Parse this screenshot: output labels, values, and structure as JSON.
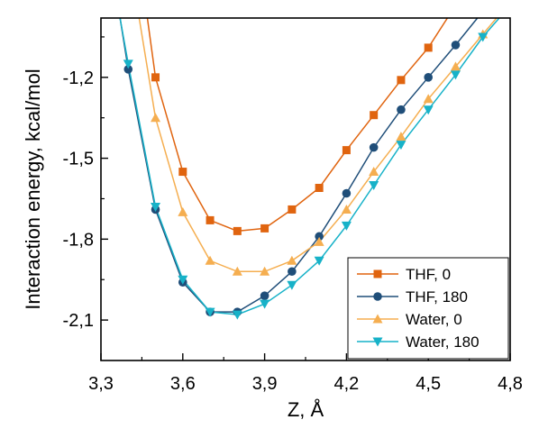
{
  "chart_data": {
    "type": "line",
    "xlabel": "Z, Å",
    "ylabel": "Interaction energy, kcal/mol",
    "xlim": [
      3.3,
      4.8
    ],
    "ylim": [
      -2.25,
      -0.98
    ],
    "xticks": [
      3.3,
      3.6,
      3.9,
      4.2,
      4.5,
      4.8
    ],
    "xtick_labels": [
      "3,3",
      "3,6",
      "3,9",
      "4,2",
      "4,5",
      "4,8"
    ],
    "yticks": [
      -1.2,
      -1.5,
      -1.8,
      -2.1
    ],
    "ytick_labels": [
      "-1,2",
      "-1,5",
      "-1,8",
      "-2,1"
    ],
    "grid": false,
    "legend_position": "bottom-right",
    "series": [
      {
        "name": "THF, 0",
        "color": "#e0640f",
        "marker": "square",
        "x": [
          3.5,
          3.6,
          3.7,
          3.8,
          3.9,
          4.0,
          4.1,
          4.2,
          4.3,
          4.4,
          4.5
        ],
        "y": [
          -1.2,
          -1.55,
          -1.73,
          -1.77,
          -1.76,
          -1.69,
          -1.61,
          -1.47,
          -1.34,
          -1.21,
          -1.09
        ],
        "curve": [
          [
            3.47,
            -0.98
          ],
          [
            3.5,
            -1.2
          ],
          [
            3.6,
            -1.55
          ],
          [
            3.7,
            -1.73
          ],
          [
            3.8,
            -1.77
          ],
          [
            3.9,
            -1.76
          ],
          [
            4.0,
            -1.69
          ],
          [
            4.1,
            -1.61
          ],
          [
            4.2,
            -1.47
          ],
          [
            4.3,
            -1.34
          ],
          [
            4.4,
            -1.21
          ],
          [
            4.5,
            -1.09
          ],
          [
            4.57,
            -0.98
          ]
        ]
      },
      {
        "name": "THF, 180",
        "color": "#1f4e79",
        "marker": "circle",
        "x": [
          3.4,
          3.5,
          3.6,
          3.7,
          3.8,
          3.9,
          4.0,
          4.1,
          4.2,
          4.3,
          4.4,
          4.5,
          4.6
        ],
        "y": [
          -1.17,
          -1.69,
          -1.96,
          -2.07,
          -2.07,
          -2.01,
          -1.92,
          -1.79,
          -1.63,
          -1.46,
          -1.32,
          -1.2,
          -1.08
        ],
        "curve": [
          [
            3.37,
            -0.98
          ],
          [
            3.4,
            -1.17
          ],
          [
            3.5,
            -1.69
          ],
          [
            3.6,
            -1.96
          ],
          [
            3.7,
            -2.07
          ],
          [
            3.8,
            -2.07
          ],
          [
            3.9,
            -2.01
          ],
          [
            4.0,
            -1.92
          ],
          [
            4.1,
            -1.79
          ],
          [
            4.2,
            -1.63
          ],
          [
            4.3,
            -1.46
          ],
          [
            4.4,
            -1.32
          ],
          [
            4.5,
            -1.2
          ],
          [
            4.6,
            -1.08
          ],
          [
            4.68,
            -0.98
          ]
        ]
      },
      {
        "name": "Water, 0",
        "color": "#f5ae50",
        "marker": "triangle-up",
        "x": [
          3.5,
          3.6,
          3.7,
          3.8,
          3.9,
          4.0,
          4.1,
          4.2,
          4.3,
          4.4,
          4.5,
          4.6,
          4.7
        ],
        "y": [
          -1.35,
          -1.7,
          -1.88,
          -1.92,
          -1.92,
          -1.88,
          -1.81,
          -1.69,
          -1.55,
          -1.42,
          -1.28,
          -1.16,
          -1.04
        ],
        "curve": [
          [
            3.44,
            -0.98
          ],
          [
            3.5,
            -1.35
          ],
          [
            3.6,
            -1.7
          ],
          [
            3.7,
            -1.88
          ],
          [
            3.8,
            -1.92
          ],
          [
            3.9,
            -1.92
          ],
          [
            4.0,
            -1.88
          ],
          [
            4.1,
            -1.81
          ],
          [
            4.2,
            -1.69
          ],
          [
            4.3,
            -1.55
          ],
          [
            4.4,
            -1.42
          ],
          [
            4.5,
            -1.28
          ],
          [
            4.6,
            -1.16
          ],
          [
            4.7,
            -1.04
          ],
          [
            4.75,
            -0.98
          ]
        ]
      },
      {
        "name": "Water, 180",
        "color": "#17b2c8",
        "marker": "triangle-down",
        "x": [
          3.4,
          3.5,
          3.6,
          3.7,
          3.8,
          3.9,
          4.0,
          4.1,
          4.2,
          4.3,
          4.4,
          4.5,
          4.6,
          4.7
        ],
        "y": [
          -1.15,
          -1.68,
          -1.95,
          -2.07,
          -2.08,
          -2.04,
          -1.97,
          -1.88,
          -1.75,
          -1.6,
          -1.45,
          -1.32,
          -1.19,
          -1.05
        ],
        "curve": [
          [
            3.37,
            -0.98
          ],
          [
            3.4,
            -1.15
          ],
          [
            3.5,
            -1.68
          ],
          [
            3.6,
            -1.95
          ],
          [
            3.7,
            -2.07
          ],
          [
            3.8,
            -2.08
          ],
          [
            3.9,
            -2.04
          ],
          [
            4.0,
            -1.97
          ],
          [
            4.1,
            -1.88
          ],
          [
            4.2,
            -1.75
          ],
          [
            4.3,
            -1.6
          ],
          [
            4.4,
            -1.45
          ],
          [
            4.5,
            -1.32
          ],
          [
            4.6,
            -1.19
          ],
          [
            4.7,
            -1.05
          ],
          [
            4.76,
            -0.98
          ]
        ]
      }
    ]
  }
}
